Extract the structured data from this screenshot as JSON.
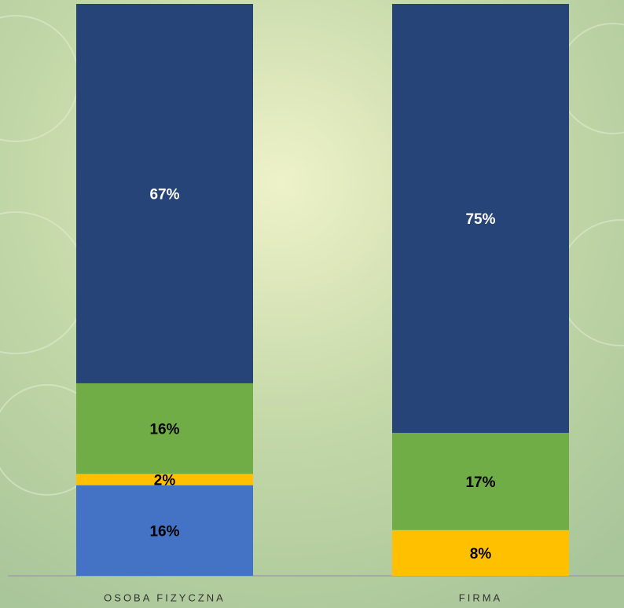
{
  "chart_data": {
    "type": "bar",
    "stacked": true,
    "categories": [
      "OSOBA FIZYCZNA",
      "FIRMA"
    ],
    "series": [
      {
        "color": "#4472c4",
        "values": [
          16,
          null
        ],
        "value_labels": [
          "16%",
          null
        ],
        "label_color": "#000000"
      },
      {
        "color": "#ffc000",
        "values": [
          2,
          8
        ],
        "value_labels": [
          "2%",
          "8%"
        ],
        "label_color": "#000000"
      },
      {
        "color": "#70ad47",
        "values": [
          16,
          17
        ],
        "value_labels": [
          "16%",
          "17%"
        ],
        "label_color": "#000000"
      },
      {
        "color": "#264478",
        "values": [
          67,
          75
        ],
        "value_labels": [
          "67%",
          "75%"
        ],
        "label_color": "#ffffff"
      }
    ]
  }
}
